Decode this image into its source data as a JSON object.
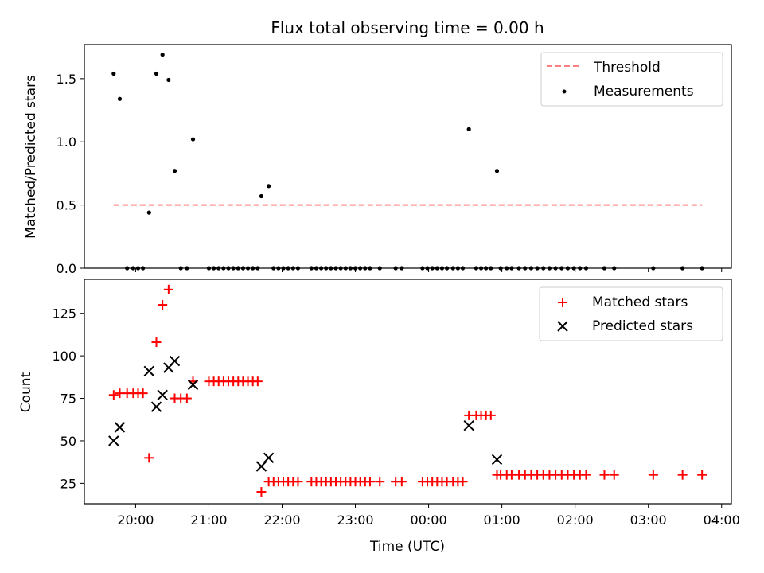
{
  "chart_data": [
    {
      "type": "scatter",
      "title": "Flux total observing time = 0.00 h",
      "xlabel": "",
      "ylabel": "Matched/Predicted stars",
      "ylim": [
        0,
        1.77
      ],
      "yticks": [
        0.0,
        0.5,
        1.0,
        1.5
      ],
      "ytick_labels": [
        "0.0",
        "0.5",
        "1.0",
        "1.5"
      ],
      "legend": {
        "position": "top-right",
        "entries": [
          {
            "label": "Threshold",
            "color": "#ff8080",
            "style": "dashed-line"
          },
          {
            "label": "Measurements",
            "color": "#000000",
            "style": "dot"
          }
        ]
      },
      "threshold": {
        "y": 0.5,
        "x_start": "19:42",
        "x_end": "03:44",
        "color": "#ff8080"
      },
      "series": [
        {
          "name": "Measurements",
          "color": "#000000",
          "points": [
            [
              "19:42",
              1.54
            ],
            [
              "19:47",
              1.34
            ],
            [
              "19:53",
              0
            ],
            [
              "19:58",
              0
            ],
            [
              "20:02",
              0
            ],
            [
              "20:06",
              0
            ],
            [
              "20:11",
              0.44
            ],
            [
              "20:17",
              1.54
            ],
            [
              "20:22",
              1.69
            ],
            [
              "20:27",
              1.49
            ],
            [
              "20:32",
              0.77
            ],
            [
              "20:37",
              0
            ],
            [
              "20:42",
              0
            ],
            [
              "20:47",
              1.02
            ],
            [
              "21:00",
              0
            ],
            [
              "21:04",
              0
            ],
            [
              "21:08",
              0
            ],
            [
              "21:12",
              0
            ],
            [
              "21:16",
              0
            ],
            [
              "21:20",
              0
            ],
            [
              "21:24",
              0
            ],
            [
              "21:28",
              0
            ],
            [
              "21:32",
              0
            ],
            [
              "21:36",
              0
            ],
            [
              "21:40",
              0
            ],
            [
              "21:43",
              0.57
            ],
            [
              "21:49",
              0.65
            ],
            [
              "21:53",
              0
            ],
            [
              "21:57",
              0
            ],
            [
              "22:01",
              0
            ],
            [
              "22:05",
              0
            ],
            [
              "22:09",
              0
            ],
            [
              "22:13",
              0
            ],
            [
              "22:24",
              0
            ],
            [
              "22:28",
              0
            ],
            [
              "22:32",
              0
            ],
            [
              "22:36",
              0
            ],
            [
              "22:40",
              0
            ],
            [
              "22:44",
              0
            ],
            [
              "22:48",
              0
            ],
            [
              "22:52",
              0
            ],
            [
              "22:56",
              0
            ],
            [
              "23:00",
              0
            ],
            [
              "23:04",
              0
            ],
            [
              "23:08",
              0
            ],
            [
              "23:12",
              0
            ],
            [
              "23:20",
              0
            ],
            [
              "23:33",
              0
            ],
            [
              "23:38",
              0
            ],
            [
              "23:55",
              0
            ],
            [
              "23:59",
              0
            ],
            [
              "00:03",
              0
            ],
            [
              "00:07",
              0
            ],
            [
              "00:11",
              0
            ],
            [
              "00:15",
              0
            ],
            [
              "00:20",
              0
            ],
            [
              "00:24",
              0
            ],
            [
              "00:28",
              0
            ],
            [
              "00:33",
              1.1
            ],
            [
              "00:39",
              0
            ],
            [
              "00:43",
              0
            ],
            [
              "00:47",
              0
            ],
            [
              "00:51",
              0
            ],
            [
              "00:56",
              0.77
            ],
            [
              "00:59",
              0
            ],
            [
              "01:04",
              0
            ],
            [
              "01:08",
              0
            ],
            [
              "01:14",
              0
            ],
            [
              "01:19",
              0
            ],
            [
              "01:24",
              0
            ],
            [
              "01:29",
              0
            ],
            [
              "01:34",
              0
            ],
            [
              "01:39",
              0
            ],
            [
              "01:44",
              0
            ],
            [
              "01:49",
              0
            ],
            [
              "01:54",
              0
            ],
            [
              "01:59",
              0
            ],
            [
              "02:04",
              0
            ],
            [
              "02:09",
              0
            ],
            [
              "02:24",
              0
            ],
            [
              "02:32",
              0
            ],
            [
              "03:04",
              0
            ],
            [
              "03:28",
              0
            ],
            [
              "03:44",
              0
            ]
          ]
        }
      ]
    },
    {
      "type": "scatter",
      "title": "",
      "xlabel": "Time (UTC)",
      "ylabel": "Count",
      "ylim": [
        13,
        145
      ],
      "yticks": [
        25,
        50,
        75,
        100,
        125
      ],
      "ytick_labels": [
        "25",
        "50",
        "75",
        "100",
        "125"
      ],
      "xlim": [
        "19:18",
        "04:08"
      ],
      "xticks": [
        "20:00",
        "21:00",
        "22:00",
        "23:00",
        "00:00",
        "01:00",
        "02:00",
        "03:00",
        "04:00"
      ],
      "legend": {
        "position": "top-right",
        "entries": [
          {
            "label": "Matched stars",
            "color": "#ff0000",
            "marker": "plus"
          },
          {
            "label": "Predicted stars",
            "color": "#000000",
            "marker": "x"
          }
        ]
      },
      "series": [
        {
          "name": "Matched stars",
          "color": "#ff0000",
          "points": [
            [
              "19:42",
              77
            ],
            [
              "19:47",
              78
            ],
            [
              "19:53",
              78
            ],
            [
              "19:58",
              78
            ],
            [
              "20:02",
              78
            ],
            [
              "20:06",
              78
            ],
            [
              "20:11",
              40
            ],
            [
              "20:17",
              108
            ],
            [
              "20:22",
              130
            ],
            [
              "20:27",
              139
            ],
            [
              "20:32",
              75
            ],
            [
              "20:37",
              75
            ],
            [
              "20:42",
              75
            ],
            [
              "20:47",
              85
            ],
            [
              "21:00",
              85
            ],
            [
              "21:04",
              85
            ],
            [
              "21:08",
              85
            ],
            [
              "21:12",
              85
            ],
            [
              "21:16",
              85
            ],
            [
              "21:20",
              85
            ],
            [
              "21:24",
              85
            ],
            [
              "21:28",
              85
            ],
            [
              "21:32",
              85
            ],
            [
              "21:36",
              85
            ],
            [
              "21:40",
              85
            ],
            [
              "21:43",
              20
            ],
            [
              "21:49",
              26
            ],
            [
              "21:53",
              26
            ],
            [
              "21:57",
              26
            ],
            [
              "22:01",
              26
            ],
            [
              "22:05",
              26
            ],
            [
              "22:09",
              26
            ],
            [
              "22:13",
              26
            ],
            [
              "22:24",
              26
            ],
            [
              "22:28",
              26
            ],
            [
              "22:32",
              26
            ],
            [
              "22:36",
              26
            ],
            [
              "22:40",
              26
            ],
            [
              "22:44",
              26
            ],
            [
              "22:48",
              26
            ],
            [
              "22:52",
              26
            ],
            [
              "22:56",
              26
            ],
            [
              "23:00",
              26
            ],
            [
              "23:04",
              26
            ],
            [
              "23:08",
              26
            ],
            [
              "23:12",
              26
            ],
            [
              "23:20",
              26
            ],
            [
              "23:33",
              26
            ],
            [
              "23:38",
              26
            ],
            [
              "23:55",
              26
            ],
            [
              "23:59",
              26
            ],
            [
              "00:03",
              26
            ],
            [
              "00:07",
              26
            ],
            [
              "00:11",
              26
            ],
            [
              "00:15",
              26
            ],
            [
              "00:20",
              26
            ],
            [
              "00:24",
              26
            ],
            [
              "00:28",
              26
            ],
            [
              "00:33",
              65
            ],
            [
              "00:39",
              65
            ],
            [
              "00:43",
              65
            ],
            [
              "00:47",
              65
            ],
            [
              "00:51",
              65
            ],
            [
              "00:56",
              30
            ],
            [
              "00:59",
              30
            ],
            [
              "01:04",
              30
            ],
            [
              "01:08",
              30
            ],
            [
              "01:14",
              30
            ],
            [
              "01:19",
              30
            ],
            [
              "01:24",
              30
            ],
            [
              "01:29",
              30
            ],
            [
              "01:34",
              30
            ],
            [
              "01:39",
              30
            ],
            [
              "01:44",
              30
            ],
            [
              "01:49",
              30
            ],
            [
              "01:54",
              30
            ],
            [
              "01:59",
              30
            ],
            [
              "02:04",
              30
            ],
            [
              "02:09",
              30
            ],
            [
              "02:24",
              30
            ],
            [
              "02:32",
              30
            ],
            [
              "03:04",
              30
            ],
            [
              "03:28",
              30
            ],
            [
              "03:44",
              30
            ]
          ]
        },
        {
          "name": "Predicted stars",
          "color": "#000000",
          "points": [
            [
              "19:42",
              50
            ],
            [
              "19:47",
              58
            ],
            [
              "20:11",
              91
            ],
            [
              "20:17",
              70
            ],
            [
              "20:22",
              77
            ],
            [
              "20:27",
              93
            ],
            [
              "20:32",
              97
            ],
            [
              "20:47",
              83
            ],
            [
              "21:43",
              35
            ],
            [
              "21:49",
              40
            ],
            [
              "00:33",
              59
            ],
            [
              "00:56",
              39
            ]
          ]
        }
      ]
    }
  ]
}
